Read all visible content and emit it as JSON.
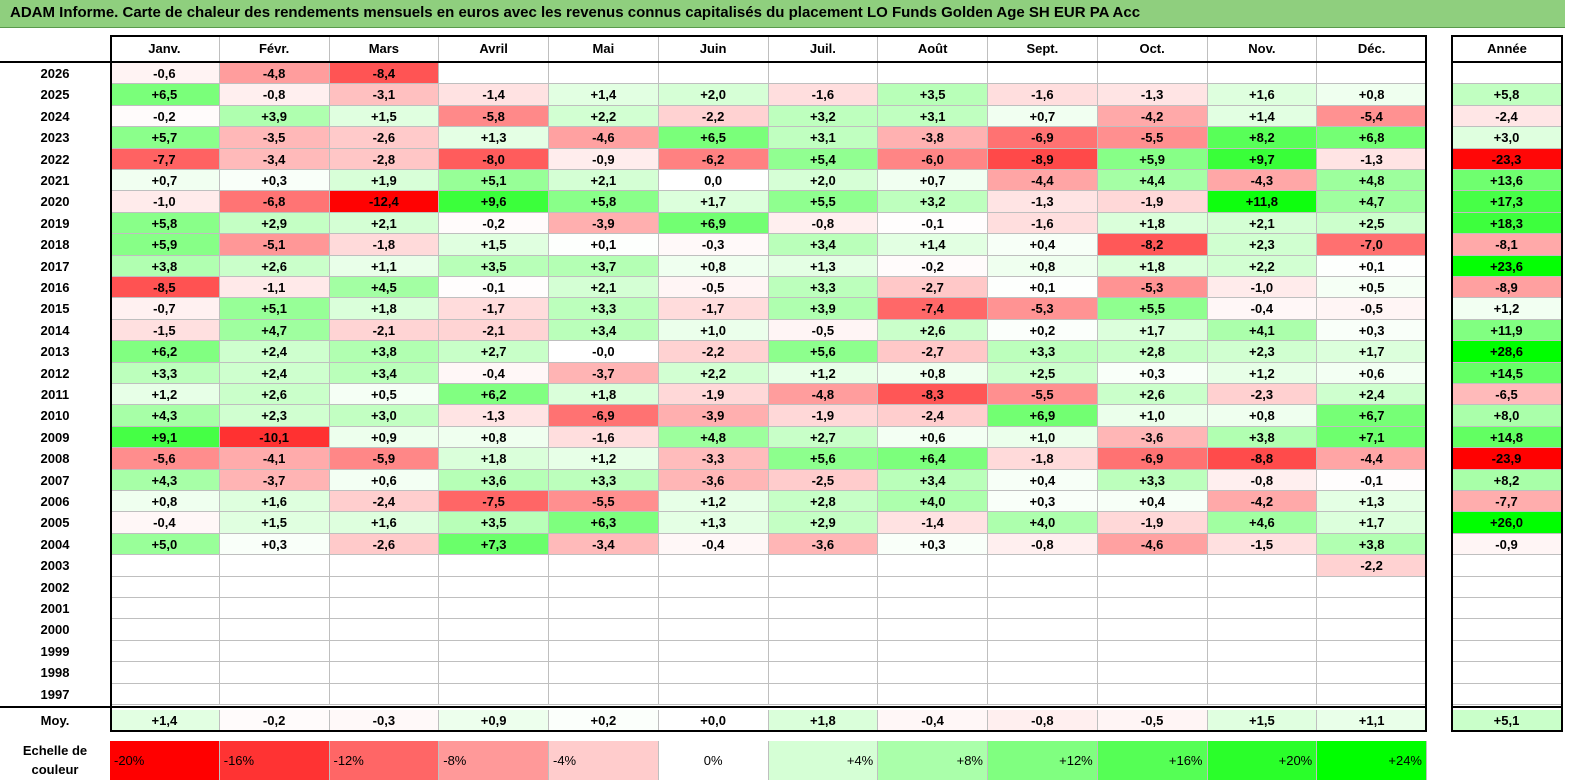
{
  "title": "ADAM Informe. Carte de chaleur des rendements mensuels en euros avec les revenus connus capitalisés du placement LO Funds Golden Age SH EUR PA Acc",
  "colors": {
    "title_bg": "#8fcf7e",
    "negative_max": "#ff0000",
    "positive_max": "#00ff00",
    "neutral": "#ffffff"
  },
  "chart_data": {
    "type": "heatmap",
    "months": [
      "Janv.",
      "Févr.",
      "Mars",
      "Avril",
      "Mai",
      "Juin",
      "Juil.",
      "Août",
      "Sept.",
      "Oct.",
      "Nov.",
      "Déc."
    ],
    "year_header": "Année",
    "rows": [
      {
        "year": "2026",
        "m": [
          "-0,6",
          "-4,8",
          "-8,4",
          "",
          "",
          "",
          "",
          "",
          "",
          "",
          "",
          ""
        ],
        "y": ""
      },
      {
        "year": "2025",
        "m": [
          "+6,5",
          "-0,8",
          "-3,1",
          "-1,4",
          "+1,4",
          "+2,0",
          "-1,6",
          "+3,5",
          "-1,6",
          "-1,3",
          "+1,6",
          "+0,8"
        ],
        "y": "+5,8"
      },
      {
        "year": "2024",
        "m": [
          "-0,2",
          "+3,9",
          "+1,5",
          "-5,8",
          "+2,2",
          "-2,2",
          "+3,2",
          "+3,1",
          "+0,7",
          "-4,2",
          "+1,4",
          "-5,4"
        ],
        "y": "-2,4"
      },
      {
        "year": "2023",
        "m": [
          "+5,7",
          "-3,5",
          "-2,6",
          "+1,3",
          "-4,6",
          "+6,5",
          "+3,1",
          "-3,8",
          "-6,9",
          "-5,5",
          "+8,2",
          "+6,8"
        ],
        "y": "+3,0"
      },
      {
        "year": "2022",
        "m": [
          "-7,7",
          "-3,4",
          "-2,8",
          "-8,0",
          "-0,9",
          "-6,2",
          "+5,4",
          "-6,0",
          "-8,9",
          "+5,9",
          "+9,7",
          "-1,3"
        ],
        "y": "-23,3"
      },
      {
        "year": "2021",
        "m": [
          "+0,7",
          "+0,3",
          "+1,9",
          "+5,1",
          "+2,1",
          "0,0",
          "+2,0",
          "+0,7",
          "-4,4",
          "+4,4",
          "-4,3",
          "+4,8"
        ],
        "y": "+13,6"
      },
      {
        "year": "2020",
        "m": [
          "-1,0",
          "-6,8",
          "-12,4",
          "+9,6",
          "+5,8",
          "+1,7",
          "+5,5",
          "+3,2",
          "-1,3",
          "-1,9",
          "+11,8",
          "+4,7"
        ],
        "y": "+17,3"
      },
      {
        "year": "2019",
        "m": [
          "+5,8",
          "+2,9",
          "+2,1",
          "-0,2",
          "-3,9",
          "+6,9",
          "-0,8",
          "-0,1",
          "-1,6",
          "+1,8",
          "+2,1",
          "+2,5"
        ],
        "y": "+18,3"
      },
      {
        "year": "2018",
        "m": [
          "+5,9",
          "-5,1",
          "-1,8",
          "+1,5",
          "+0,1",
          "-0,3",
          "+3,4",
          "+1,4",
          "+0,4",
          "-8,2",
          "+2,3",
          "-7,0"
        ],
        "y": "-8,1"
      },
      {
        "year": "2017",
        "m": [
          "+3,8",
          "+2,6",
          "+1,1",
          "+3,5",
          "+3,7",
          "+0,8",
          "+1,3",
          "-0,2",
          "+0,8",
          "+1,8",
          "+2,2",
          "+0,1"
        ],
        "y": "+23,6"
      },
      {
        "year": "2016",
        "m": [
          "-8,5",
          "-1,1",
          "+4,5",
          "-0,1",
          "+2,1",
          "-0,5",
          "+3,3",
          "-2,7",
          "+0,1",
          "-5,3",
          "-1,0",
          "+0,5"
        ],
        "y": "-8,9"
      },
      {
        "year": "2015",
        "m": [
          "-0,7",
          "+5,1",
          "+1,8",
          "-1,7",
          "+3,3",
          "-1,7",
          "+3,9",
          "-7,4",
          "-5,3",
          "+5,5",
          "-0,4",
          "-0,5"
        ],
        "y": "+1,2"
      },
      {
        "year": "2014",
        "m": [
          "-1,5",
          "+4,7",
          "-2,1",
          "-2,1",
          "+3,4",
          "+1,0",
          "-0,5",
          "+2,6",
          "+0,2",
          "+1,7",
          "+4,1",
          "+0,3"
        ],
        "y": "+11,9"
      },
      {
        "year": "2013",
        "m": [
          "+6,2",
          "+2,4",
          "+3,8",
          "+2,7",
          "-0,0",
          "-2,2",
          "+5,6",
          "-2,7",
          "+3,3",
          "+2,8",
          "+2,3",
          "+1,7"
        ],
        "y": "+28,6"
      },
      {
        "year": "2012",
        "m": [
          "+3,3",
          "+2,4",
          "+3,4",
          "-0,4",
          "-3,7",
          "+2,2",
          "+1,2",
          "+0,8",
          "+2,5",
          "+0,3",
          "+1,2",
          "+0,6"
        ],
        "y": "+14,5"
      },
      {
        "year": "2011",
        "m": [
          "+1,2",
          "+2,6",
          "+0,5",
          "+6,2",
          "+1,8",
          "-1,9",
          "-4,8",
          "-8,3",
          "-5,5",
          "+2,6",
          "-2,3",
          "+2,4"
        ],
        "y": "-6,5"
      },
      {
        "year": "2010",
        "m": [
          "+4,3",
          "+2,3",
          "+3,0",
          "-1,3",
          "-6,9",
          "-3,9",
          "-1,9",
          "-2,4",
          "+6,9",
          "+1,0",
          "+0,8",
          "+6,7"
        ],
        "y": "+8,0"
      },
      {
        "year": "2009",
        "m": [
          "+9,1",
          "-10,1",
          "+0,9",
          "+0,8",
          "-1,6",
          "+4,8",
          "+2,7",
          "+0,6",
          "+1,0",
          "-3,6",
          "+3,8",
          "+7,1"
        ],
        "y": "+14,8"
      },
      {
        "year": "2008",
        "m": [
          "-5,6",
          "-4,1",
          "-5,9",
          "+1,8",
          "+1,2",
          "-3,3",
          "+5,6",
          "+6,4",
          "-1,8",
          "-6,9",
          "-8,8",
          "-4,4"
        ],
        "y": "-23,9"
      },
      {
        "year": "2007",
        "m": [
          "+4,3",
          "-3,7",
          "+0,6",
          "+3,6",
          "+3,3",
          "-3,6",
          "-2,5",
          "+3,4",
          "+0,4",
          "+3,3",
          "-0,8",
          "-0,1"
        ],
        "y": "+8,2"
      },
      {
        "year": "2006",
        "m": [
          "+0,8",
          "+1,6",
          "-2,4",
          "-7,5",
          "-5,5",
          "+1,2",
          "+2,8",
          "+4,0",
          "+0,3",
          "+0,4",
          "-4,2",
          "+1,3"
        ],
        "y": "-7,7"
      },
      {
        "year": "2005",
        "m": [
          "-0,4",
          "+1,5",
          "+1,6",
          "+3,5",
          "+6,3",
          "+1,3",
          "+2,9",
          "-1,4",
          "+4,0",
          "-1,9",
          "+4,6",
          "+1,7"
        ],
        "y": "+26,0"
      },
      {
        "year": "2004",
        "m": [
          "+5,0",
          "+0,3",
          "-2,6",
          "+7,3",
          "-3,4",
          "-0,4",
          "-3,6",
          "+0,3",
          "-0,8",
          "-4,6",
          "-1,5",
          "+3,8"
        ],
        "y": "-0,9"
      },
      {
        "year": "2003",
        "m": [
          "",
          "",
          "",
          "",
          "",
          "",
          "",
          "",
          "",
          "",
          "",
          "-2,2"
        ],
        "y": ""
      },
      {
        "year": "2002",
        "m": [
          "",
          "",
          "",
          "",
          "",
          "",
          "",
          "",
          "",
          "",
          "",
          ""
        ],
        "y": ""
      },
      {
        "year": "2001",
        "m": [
          "",
          "",
          "",
          "",
          "",
          "",
          "",
          "",
          "",
          "",
          "",
          ""
        ],
        "y": ""
      },
      {
        "year": "2000",
        "m": [
          "",
          "",
          "",
          "",
          "",
          "",
          "",
          "",
          "",
          "",
          "",
          ""
        ],
        "y": ""
      },
      {
        "year": "1999",
        "m": [
          "",
          "",
          "",
          "",
          "",
          "",
          "",
          "",
          "",
          "",
          "",
          ""
        ],
        "y": ""
      },
      {
        "year": "1998",
        "m": [
          "",
          "",
          "",
          "",
          "",
          "",
          "",
          "",
          "",
          "",
          "",
          ""
        ],
        "y": ""
      },
      {
        "year": "1997",
        "m": [
          "",
          "",
          "",
          "",
          "",
          "",
          "",
          "",
          "",
          "",
          "",
          ""
        ],
        "y": ""
      }
    ],
    "average": {
      "label": "Moy.",
      "m": [
        "+1,4",
        "-0,2",
        "-0,3",
        "+0,9",
        "+0,2",
        "+0,0",
        "+1,8",
        "-0,4",
        "-0,8",
        "-0,5",
        "+1,5",
        "+1,1"
      ],
      "y": "+5,1"
    },
    "scale_label": "Echelle de couleur",
    "scale": [
      "-20%",
      "-16%",
      "-12%",
      "-8%",
      "-4%",
      "0%",
      "+4%",
      "+8%",
      "+12%",
      "+16%",
      "+20%",
      "+24%"
    ],
    "scale_values": [
      -20,
      -16,
      -12,
      -8,
      -4,
      0,
      4,
      8,
      12,
      16,
      20,
      24
    ]
  }
}
